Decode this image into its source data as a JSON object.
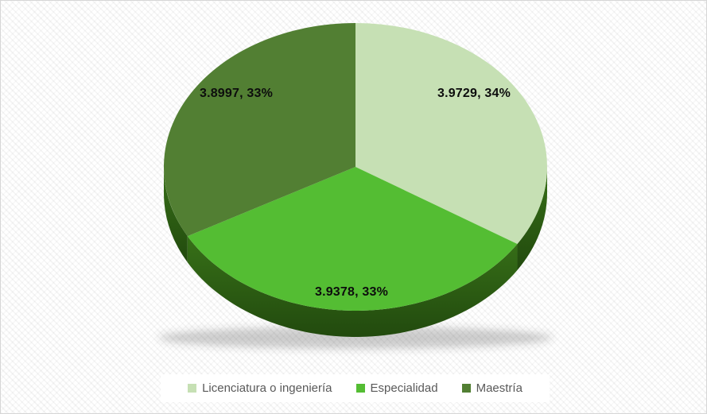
{
  "chart_data": {
    "type": "pie",
    "is_3d": true,
    "title": "",
    "legend_position": "bottom",
    "label_format": "value, percent",
    "slices": [
      {
        "label": "Licenciatura o ingeniería",
        "value": 3.9729,
        "percent": 34,
        "data_label": "3.9729, 34%",
        "color": "#c6e0b4"
      },
      {
        "label": "Especialidad",
        "value": 3.9378,
        "percent": 33,
        "data_label": "3.9378, 33%",
        "color": "#54bd33"
      },
      {
        "label": "Maestría",
        "value": 3.8997,
        "percent": 33,
        "data_label": "3.8997, 33%",
        "color": "#527f33"
      }
    ],
    "rim_color_top": "#377018",
    "rim_color_bottom": "#224a0e",
    "shadow_color": "rgba(60,60,60,0.25)",
    "legend_text_color": "#595959",
    "data_label_color": "#0d0d0d"
  }
}
